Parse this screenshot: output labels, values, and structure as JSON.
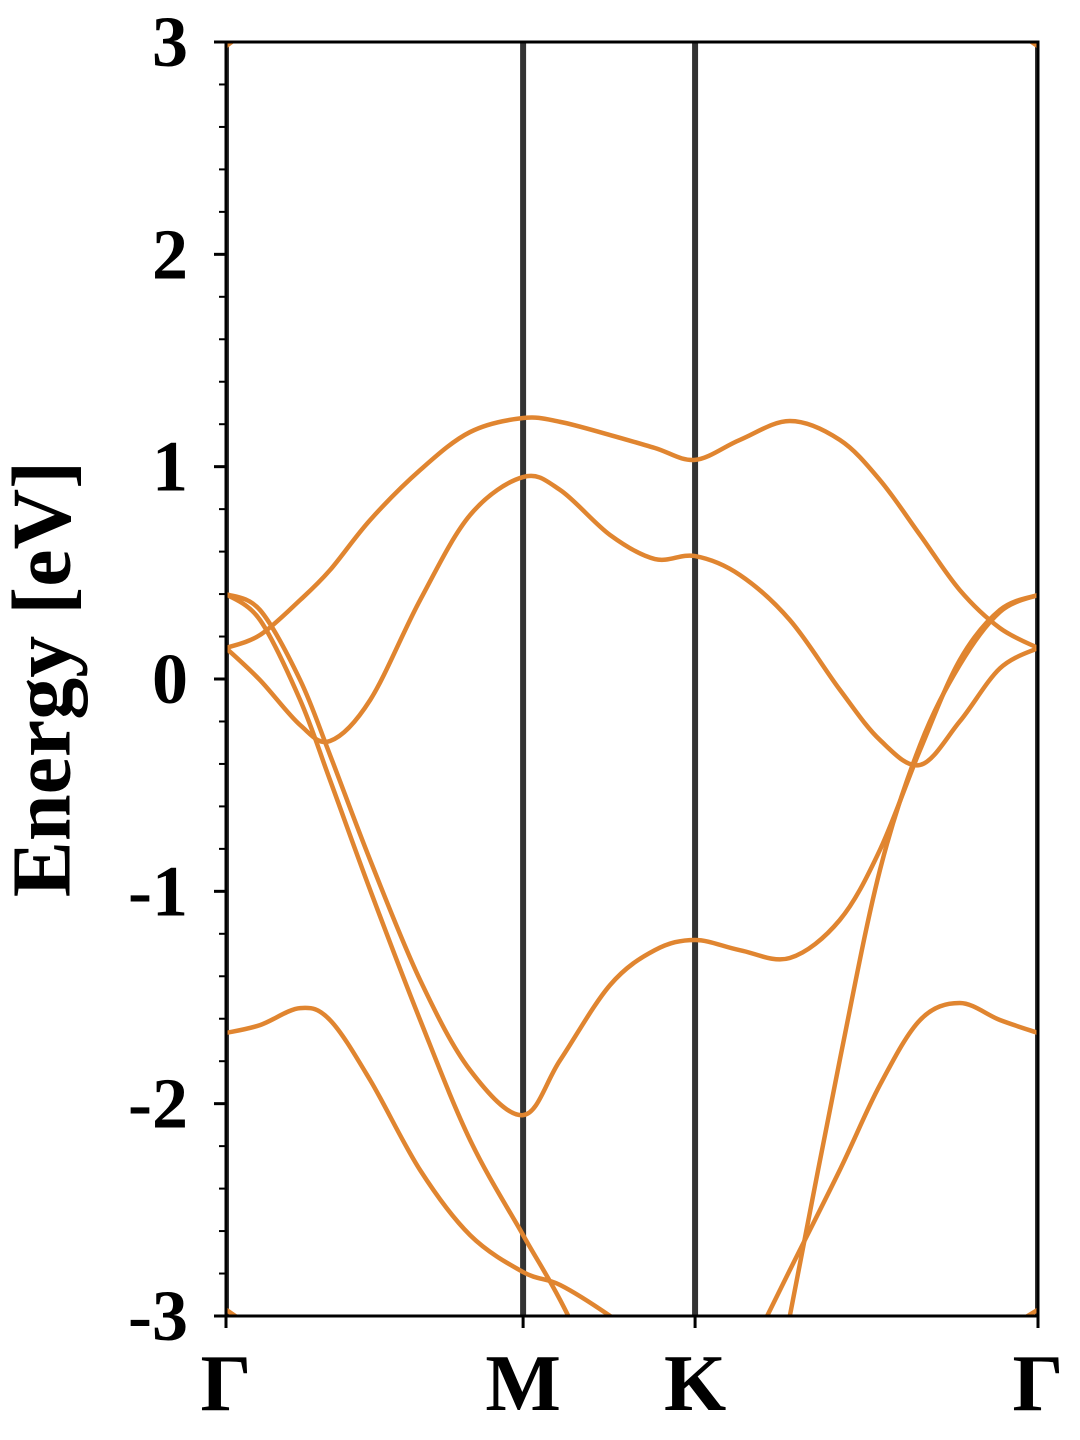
{
  "chart_data": {
    "type": "line",
    "ylabel": "Energy [eV]",
    "x": [
      0,
      0.066,
      0.144,
      0.202,
      0.28,
      0.377,
      0.474,
      0.577,
      0.649,
      0.746,
      0.833,
      0.911,
      0.998,
      1.095,
      1.192,
      1.27,
      1.348,
      1.425,
      1.503,
      1.577
    ],
    "xlim": [
      0,
      1.577
    ],
    "xticks": [
      {
        "value": 0,
        "label": "Γ"
      },
      {
        "value": 0.577,
        "label": "M"
      },
      {
        "value": 0.911,
        "label": "K"
      },
      {
        "value": 1.577,
        "label": "Γ"
      }
    ],
    "kpoint_lines": true,
    "kpoint_line_color": "#333333",
    "ylim": [
      -3,
      3
    ],
    "yticks": [
      -3,
      -2,
      -1,
      0,
      1,
      2,
      3
    ],
    "yminor_ticks": [
      -2.8,
      -2.6,
      -2.4,
      -2.2,
      -1.8,
      -1.6,
      -1.4,
      -1.2,
      -0.8,
      -0.6,
      -0.4,
      -0.2,
      0.2,
      0.4,
      0.6,
      0.8,
      1.2,
      1.4,
      1.6,
      1.8,
      2.2,
      2.4,
      2.6,
      2.8
    ],
    "series": [
      {
        "color": "#e08530",
        "values": [
          0.146,
          0.207,
          0.372,
          0.513,
          0.749,
          0.984,
          1.163,
          1.229,
          1.211,
          1.149,
          1.088,
          1.032,
          1.126,
          1.215,
          1.126,
          0.937,
          0.678,
          0.419,
          0.24,
          0.146
        ]
      },
      {
        "color": "#e08530",
        "values": [
          0.146,
          -0.005,
          -0.217,
          -0.292,
          -0.099,
          0.372,
          0.772,
          0.951,
          0.89,
          0.678,
          0.565,
          0.579,
          0.49,
          0.278,
          -0.05,
          -0.287,
          -0.405,
          -0.2,
          0.05,
          0.146
        ]
      },
      {
        "color": "#e08530",
        "values": [
          0.4,
          0.325,
          -0.005,
          -0.358,
          -0.853,
          -1.418,
          -1.842,
          -2.054,
          -1.795,
          -1.441,
          -1.277,
          -1.229,
          -1.277,
          -1.314,
          -1.135,
          -0.805,
          -0.334,
          0.089,
          0.325,
          0.396
        ]
      },
      {
        "color": "#e08530",
        "values": [
          0.4,
          0.278,
          -0.099,
          -0.476,
          -0.994,
          -1.606,
          -2.171,
          -2.619,
          -2.925,
          -3.4,
          null,
          null,
          null,
          -3.0,
          -1.795,
          -0.9,
          -0.311,
          0.066,
          0.316,
          0.396
        ]
      },
      {
        "color": "#e08530",
        "values": [
          -1.667,
          -1.63,
          -1.55,
          -1.606,
          -1.889,
          -2.313,
          -2.619,
          -2.793,
          -2.854,
          -3.0,
          -3.16,
          null,
          -3.26,
          -2.784,
          -2.313,
          -1.912,
          -1.606,
          -1.526,
          -1.606,
          -1.667
        ]
      },
      {
        "color": "#e08530",
        "values": [
          2.98,
          3.1,
          null,
          null,
          null,
          null,
          null,
          null,
          null,
          null,
          null,
          null,
          null,
          null,
          null,
          null,
          null,
          null,
          3.1,
          2.98
        ]
      },
      {
        "color": "#e08530",
        "values": [
          -2.97,
          -3.08,
          null,
          null,
          null,
          null,
          null,
          null,
          null,
          null,
          null,
          null,
          null,
          null,
          null,
          null,
          null,
          null,
          -3.08,
          -2.97
        ]
      }
    ]
  }
}
